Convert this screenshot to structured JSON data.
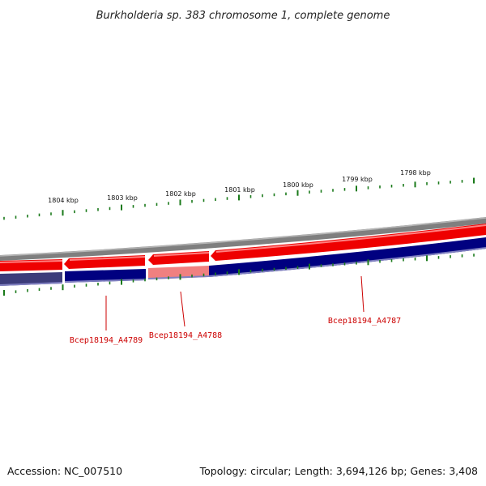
{
  "title": "Burkholderia sp. 383 chromosome 1, complete genome",
  "footer": {
    "accession": "Accession: NC_007510",
    "topology": "Topology: circular; Length: 3,694,126 bp; Genes: 3,408"
  },
  "colors": {
    "forward_gene": "#ee0000",
    "forward_gene_light": "#f08080",
    "reverse_gene": "#000080",
    "reverse_gene_muted": "#3c3c7a",
    "backbone": "#808080",
    "ticks": "#1a7a1a",
    "label": "#cc0000"
  },
  "kbp_ticks": [
    {
      "label": "1804 kbp"
    },
    {
      "label": "1803 kbp"
    },
    {
      "label": "1802 kbp"
    },
    {
      "label": "1801 kbp"
    },
    {
      "label": "1800 kbp"
    },
    {
      "label": "1799 kbp"
    },
    {
      "label": "1798 kbp"
    }
  ],
  "genes": [
    {
      "label": "Bcep18194_A4789"
    },
    {
      "label": "Bcep18194_A4788"
    },
    {
      "label": "Bcep18194_A4787"
    }
  ]
}
